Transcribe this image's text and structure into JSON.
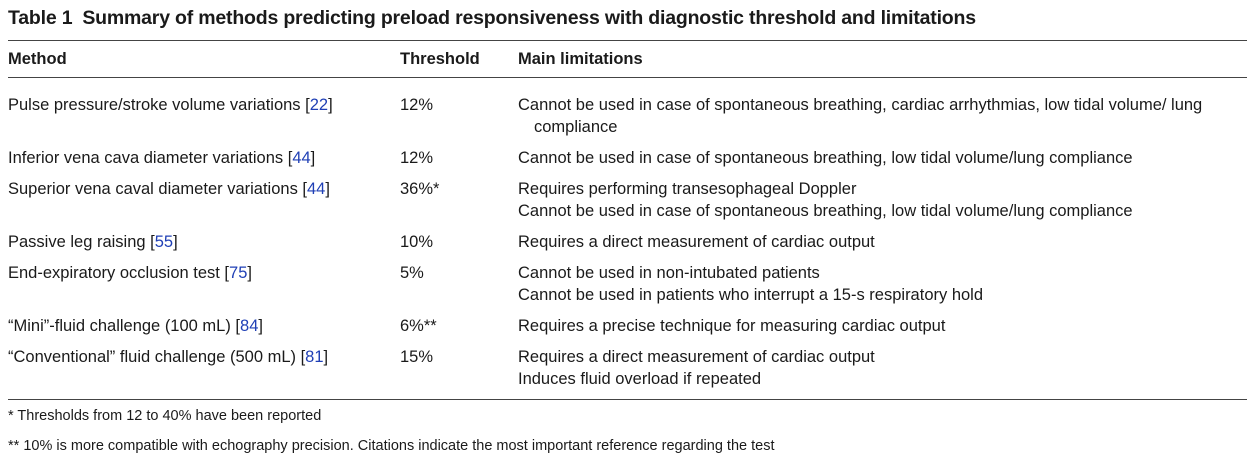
{
  "table": {
    "label": "Table 1",
    "title": "Summary of methods predicting preload responsiveness with diagnostic threshold and limitations",
    "headers": [
      "Method",
      "Threshold",
      "Main limitations"
    ],
    "rows": [
      {
        "method": "Pulse pressure/stroke volume variations [",
        "ref": "22",
        "close": "]",
        "threshold": "12%",
        "limitations": [
          "Cannot be used in case of spontaneous breathing, cardiac arrhythmias, low tidal volume/ lung compliance"
        ]
      },
      {
        "method": "Inferior vena cava diameter variations [",
        "ref": "44",
        "close": "]",
        "threshold": "12%",
        "limitations": [
          "Cannot be used in case of spontaneous breathing, low tidal volume/lung compliance"
        ]
      },
      {
        "method": "Superior vena caval diameter variations [",
        "ref": "44",
        "close": "]",
        "threshold": "36%*",
        "limitations": [
          "Requires performing transesophageal Doppler",
          "Cannot be used in case of spontaneous breathing, low tidal volume/lung compliance"
        ]
      },
      {
        "method": "Passive leg raising [",
        "ref": "55",
        "close": "]",
        "threshold": "10%",
        "limitations": [
          "Requires a direct measurement of cardiac output"
        ]
      },
      {
        "method": "End-expiratory occlusion test [",
        "ref": "75",
        "close": "]",
        "threshold": "5%",
        "limitations": [
          "Cannot be used in non-intubated patients",
          "Cannot be used in patients who interrupt a 15-s respiratory hold"
        ]
      },
      {
        "method": "“Mini”-fluid challenge (100 mL) [",
        "ref": "84",
        "close": "]",
        "threshold": "6%**",
        "limitations": [
          "Requires a precise technique for measuring cardiac output"
        ]
      },
      {
        "method": "“Conventional” fluid challenge (500 mL) [",
        "ref": "81",
        "close": "]",
        "threshold": "15%",
        "limitations": [
          "Requires a direct measurement of cardiac output",
          "Induces fluid overload if repeated"
        ]
      }
    ],
    "footnotes": [
      "* Thresholds from 12 to 40% have been reported",
      "** 10% is more compatible with echography precision. Citations indicate the most important reference regarding the test"
    ],
    "colors": {
      "citation": "#1f3fb5",
      "text": "#1a1a1a",
      "rule": "#444444"
    }
  }
}
